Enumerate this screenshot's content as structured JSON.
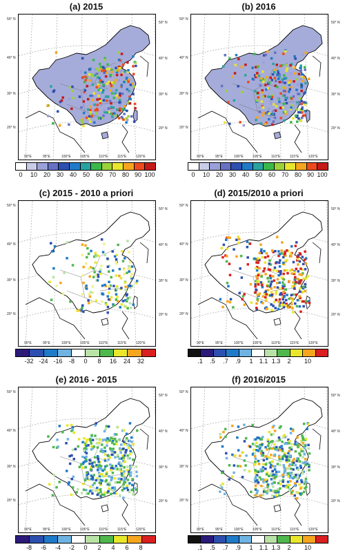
{
  "panels": {
    "a": {
      "title": "(a) 2015",
      "ticks": [
        "0",
        "10",
        "20",
        "30",
        "40",
        "50",
        "60",
        "70",
        "80",
        "90",
        "100"
      ]
    },
    "b": {
      "title": "(b) 2016",
      "ticks": [
        "0",
        "10",
        "20",
        "30",
        "40",
        "50",
        "60",
        "70",
        "80",
        "90",
        "100"
      ]
    },
    "c": {
      "title": "(c) 2015 - 2010 a priori",
      "ticks": [
        "-32",
        "-24",
        "-16",
        "-8",
        "0",
        "8",
        "16",
        "24",
        "32"
      ]
    },
    "d": {
      "title": "(d) 2015/2010 a priori",
      "ticks": [
        ".1",
        ".5",
        ".7",
        ".9",
        "1",
        "1.1",
        "1.3",
        "2",
        "10"
      ]
    },
    "e": {
      "title": "(e) 2016 - 2015",
      "ticks": [
        "-8",
        "-6",
        "-4",
        "-2",
        "0",
        "2",
        "4",
        "6",
        "8"
      ]
    },
    "f": {
      "title": "(f) 2016/2015",
      "ticks": [
        ".1",
        ".5",
        ".7",
        ".9",
        "1",
        "1.1",
        "1.3",
        "2",
        "10"
      ]
    }
  },
  "lat_labels": [
    "50° N",
    "40° N",
    "30° N",
    "20° N"
  ],
  "lon_labels": [
    "90°E",
    "95°E",
    "100°E",
    "105°E",
    "110°E",
    "115°E",
    "120°E"
  ],
  "colors": {
    "abs": [
      "#ffffff",
      "#c9cce9",
      "#9aa0d8",
      "#6670c4",
      "#2d4fb0",
      "#1f7ac9",
      "#2aa3a0",
      "#3cb84a",
      "#9bd23a",
      "#e9e72c",
      "#f6a51e",
      "#ee4a1e",
      "#c51a1a"
    ],
    "diff": [
      "#2b1a7a",
      "#2d4fb0",
      "#1f7ac9",
      "#6fb3e2",
      "#ffffff",
      "#b9e3a6",
      "#4fb84d",
      "#e9e72c",
      "#f6a51e",
      "#d91f1f"
    ],
    "ratio": [
      "#111111",
      "#2b1a7a",
      "#2d4fb0",
      "#1f7ac9",
      "#6fb3e2",
      "#ffffff",
      "#b9e3a6",
      "#4fb84d",
      "#e9e72c",
      "#f6a51e",
      "#d91f1f"
    ]
  }
}
